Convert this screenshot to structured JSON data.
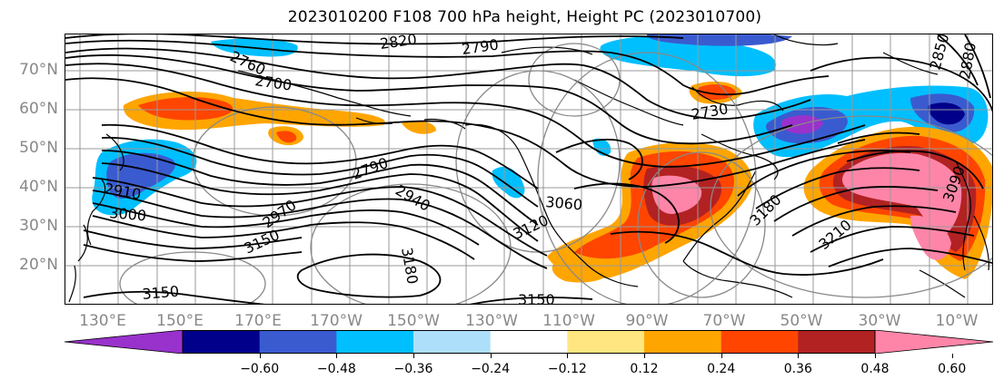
{
  "title": "2023010200 F108 700 hPa height, Height PC (2023010700)",
  "lat_labels": [
    "70°N",
    "60°N",
    "50°N",
    "40°N",
    "30°N",
    "20°N"
  ],
  "lon_labels": [
    "130°E",
    "150°E",
    "170°E",
    "170°W",
    "150°W",
    "130°W",
    "110°W",
    "90°W",
    "70°W",
    "50°W",
    "30°W",
    "10°W"
  ],
  "contour_labels": [
    "2820",
    "2790",
    "2760",
    "2700",
    "2730",
    "2850",
    "2880",
    "2910",
    "3000",
    "2970",
    "2790",
    "2940",
    "3060",
    "3120",
    "3150",
    "3150",
    "3180",
    "3210",
    "3180",
    "3150",
    "3090"
  ],
  "colorbar": {
    "colors": [
      "#9932CC",
      "#00008B",
      "#3A5BD0",
      "#00BFFF",
      "#ADDFFA",
      "#FFFFFF",
      "#FFE680",
      "#FFA500",
      "#FF4500",
      "#B22222",
      "#FF85A8"
    ],
    "tick_labels": [
      "−0.60",
      "−0.48",
      "−0.36",
      "−0.24",
      "−0.12",
      "0.12",
      "0.24",
      "0.36",
      "0.48",
      "0.60"
    ]
  }
}
